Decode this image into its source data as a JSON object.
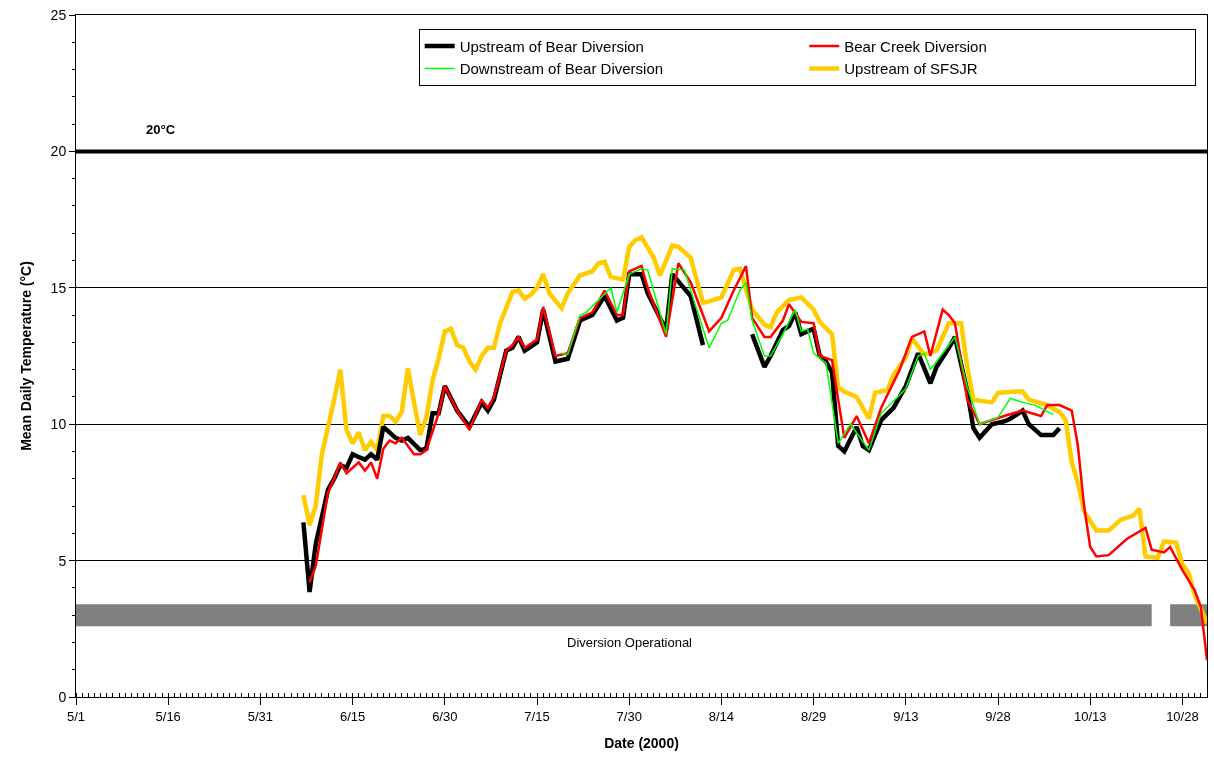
{
  "chart_data": {
    "type": "line",
    "xlabel": "Date (2000)",
    "ylabel": "Mean Daily Temperature (°C)",
    "xlim": [
      "2000-05-01",
      "2000-11-01"
    ],
    "xticks": [
      {
        "value": "2000-05-01",
        "label": "5/1"
      },
      {
        "value": "2000-05-16",
        "label": "5/16"
      },
      {
        "value": "2000-05-31",
        "label": "5/31"
      },
      {
        "value": "2000-06-15",
        "label": "6/15"
      },
      {
        "value": "2000-06-30",
        "label": "6/30"
      },
      {
        "value": "2000-07-15",
        "label": "7/15"
      },
      {
        "value": "2000-07-30",
        "label": "7/30"
      },
      {
        "value": "2000-08-14",
        "label": "8/14"
      },
      {
        "value": "2000-08-29",
        "label": "8/29"
      },
      {
        "value": "2000-09-13",
        "label": "9/13"
      },
      {
        "value": "2000-09-28",
        "label": "9/28"
      },
      {
        "value": "2000-10-13",
        "label": "10/13"
      },
      {
        "value": "2000-10-28",
        "label": "10/28"
      }
    ],
    "ylim": [
      0,
      25
    ],
    "yticks": [
      0,
      5,
      10,
      15,
      20,
      25
    ],
    "grid": "y",
    "legend": "top right",
    "ref_lines": [
      {
        "axis": "y",
        "value": 20,
        "label": "20°C",
        "color": "#000000"
      }
    ],
    "series": [
      {
        "name": "Diversion Operational",
        "color": "#808080",
        "x": [
          "2000-05-01",
          "2000-10-23",
          "2000-10-24",
          "2000-10-26",
          "2000-11-01"
        ],
        "values": [
          3,
          3,
          null,
          3,
          3
        ]
      },
      {
        "name": "Upstream of SFSJR",
        "color": "#ffcc00",
        "x": [
          "2000-06-07",
          "2000-06-08",
          "2000-06-09",
          "2000-06-10",
          "2000-06-11",
          "2000-06-12",
          "2000-06-13",
          "2000-06-14",
          "2000-06-15",
          "2000-06-16",
          "2000-06-17",
          "2000-06-18",
          "2000-06-19",
          "2000-06-20",
          "2000-06-21",
          "2000-06-22",
          "2000-06-23",
          "2000-06-24",
          "2000-06-25",
          "2000-06-26",
          "2000-06-27",
          "2000-06-28",
          "2000-06-29",
          "2000-06-30",
          "2000-07-01",
          "2000-07-02",
          "2000-07-03",
          "2000-07-04",
          "2000-07-05",
          "2000-07-06",
          "2000-07-07",
          "2000-07-08",
          "2000-07-09",
          "2000-07-11",
          "2000-07-12",
          "2000-07-13",
          "2000-07-14",
          "2000-07-15",
          "2000-07-16",
          "2000-07-17",
          "2000-07-19",
          "2000-07-20",
          "2000-07-22",
          "2000-07-24",
          "2000-07-25",
          "2000-07-26",
          "2000-07-27",
          "2000-07-29",
          "2000-07-30",
          "2000-07-31",
          "2000-08-01",
          "2000-08-03",
          "2000-08-04",
          "2000-08-06",
          "2000-08-07",
          "2000-08-09",
          "2000-08-11",
          "2000-08-12",
          "2000-08-14",
          "2000-08-16",
          "2000-08-17",
          "2000-08-19",
          "2000-08-21",
          "2000-08-22",
          "2000-08-23",
          "2000-08-25",
          "2000-08-27",
          "2000-08-29",
          "2000-08-30",
          "2000-09-01",
          "2000-09-02",
          "2000-09-03",
          "2000-09-05",
          "2000-09-07",
          "2000-09-08",
          "2000-09-10",
          "2000-09-11",
          "2000-09-13",
          "2000-09-14",
          "2000-09-16",
          "2000-09-18",
          "2000-09-19",
          "2000-09-20",
          "2000-09-22",
          "2000-09-23",
          "2000-09-24",
          "2000-09-27",
          "2000-09-28",
          "2000-10-01",
          "2000-10-02",
          "2000-10-03",
          "2000-10-06",
          "2000-10-08",
          "2000-10-09",
          "2000-10-10",
          "2000-10-11",
          "2000-10-12",
          "2000-10-14",
          "2000-10-16",
          "2000-10-18",
          "2000-10-20",
          "2000-10-21",
          "2000-10-22",
          "2000-10-24",
          "2000-10-25",
          "2000-10-27",
          "2000-10-28",
          "2000-10-29",
          "2000-10-30",
          "2000-11-01"
        ],
        "values": [
          7.4,
          6.3,
          7.0,
          8.9,
          9.9,
          10.9,
          12.0,
          9.8,
          9.3,
          9.7,
          9.05,
          9.35,
          9.05,
          10.3,
          10.3,
          10.1,
          10.45,
          12.05,
          10.8,
          9.6,
          10.25,
          11.6,
          12.4,
          13.4,
          13.5,
          12.9,
          12.8,
          12.3,
          12.0,
          12.5,
          12.8,
          12.8,
          13.7,
          14.85,
          14.9,
          14.6,
          14.75,
          15.0,
          15.5,
          14.8,
          14.25,
          14.8,
          15.45,
          15.6,
          15.9,
          15.95,
          15.4,
          15.3,
          16.5,
          16.75,
          16.85,
          16.1,
          15.45,
          16.55,
          16.5,
          16.1,
          14.45,
          14.5,
          14.65,
          15.65,
          15.7,
          14.2,
          13.65,
          13.55,
          14.1,
          14.55,
          14.65,
          14.2,
          13.75,
          13.3,
          11.35,
          11.2,
          11.0,
          10.2,
          11.15,
          11.25,
          11.8,
          12.45,
          13.15,
          12.55,
          12.7,
          13.2,
          13.7,
          13.7,
          12.1,
          10.9,
          10.8,
          11.15,
          11.2,
          11.2,
          10.9,
          10.7,
          10.45,
          10.15,
          8.6,
          7.85,
          6.8,
          6.1,
          6.1,
          6.5,
          6.65,
          6.9,
          5.15,
          5.1,
          5.7,
          5.65,
          4.85,
          4.55,
          3.75,
          2.7
        ]
      },
      {
        "name": "Upstream of Bear Diversion",
        "color": "#000000",
        "x": [
          "2000-06-07",
          "2000-06-08",
          "2000-06-09",
          "2000-06-11",
          "2000-06-12",
          "2000-06-13",
          "2000-06-14",
          "2000-06-15",
          "2000-06-16",
          "2000-06-17",
          "2000-06-18",
          "2000-06-19",
          "2000-06-20",
          "2000-06-22",
          "2000-06-23",
          "2000-06-24",
          "2000-06-26",
          "2000-06-27",
          "2000-06-28",
          "2000-06-29",
          "2000-06-30",
          "2000-07-02",
          "2000-07-04",
          "2000-07-06",
          "2000-07-07",
          "2000-07-08",
          "2000-07-10",
          "2000-07-11",
          "2000-07-12",
          "2000-07-13",
          "2000-07-15",
          "2000-07-16",
          "2000-07-18",
          "2000-07-20",
          "2000-07-22",
          "2000-07-24",
          "2000-07-26",
          "2000-07-28",
          "2000-07-29",
          "2000-07-30",
          "2000-08-01",
          "2000-08-02",
          "2000-08-05",
          "2000-08-06",
          "2000-08-09",
          "2000-08-10",
          "2000-08-11",
          "2000-08-15",
          "2000-08-19",
          "2000-08-21",
          "2000-08-22",
          "2000-08-24",
          "2000-08-25",
          "2000-08-26",
          "2000-08-27",
          "2000-08-29",
          "2000-08-30",
          "2000-08-31",
          "2000-09-01",
          "2000-09-02",
          "2000-09-03",
          "2000-09-05",
          "2000-09-06",
          "2000-09-07",
          "2000-09-09",
          "2000-09-11",
          "2000-09-13",
          "2000-09-15",
          "2000-09-17",
          "2000-09-18",
          "2000-09-20",
          "2000-09-21",
          "2000-09-23",
          "2000-09-24",
          "2000-09-25",
          "2000-09-27",
          "2000-09-29",
          "2000-09-30",
          "2000-10-02",
          "2000-10-03",
          "2000-10-05",
          "2000-10-07",
          "2000-10-08"
        ],
        "values": [
          6.4,
          3.85,
          5.6,
          7.6,
          8.0,
          8.5,
          8.4,
          8.9,
          8.8,
          8.7,
          8.9,
          8.7,
          9.9,
          9.5,
          9.4,
          9.5,
          9.05,
          9.1,
          10.4,
          10.4,
          11.4,
          10.5,
          9.9,
          10.8,
          10.5,
          10.9,
          12.7,
          12.8,
          13.2,
          12.7,
          13.0,
          14.2,
          12.3,
          12.4,
          13.8,
          14.0,
          14.7,
          13.8,
          13.9,
          15.5,
          15.5,
          14.8,
          13.45,
          15.5,
          14.7,
          13.8,
          12.9,
          null,
          13.3,
          12.1,
          12.5,
          13.45,
          13.6,
          14.1,
          13.3,
          13.5,
          12.5,
          12.3,
          11.9,
          9.2,
          9.0,
          9.9,
          9.2,
          9.05,
          10.15,
          10.6,
          11.4,
          12.6,
          11.5,
          12.1,
          12.8,
          13.2,
          11.2,
          9.85,
          9.5,
          10.0,
          10.1,
          10.2,
          10.5,
          10.0,
          9.6,
          9.6,
          9.85
        ]
      },
      {
        "name": "Bear Creek Diversion",
        "color": "#ff0000",
        "x": [
          "2000-06-08",
          "2000-06-09",
          "2000-06-11",
          "2000-06-12",
          "2000-06-13",
          "2000-06-14",
          "2000-06-16",
          "2000-06-17",
          "2000-06-18",
          "2000-06-19",
          "2000-06-20",
          "2000-06-21",
          "2000-06-22",
          "2000-06-23",
          "2000-06-25",
          "2000-06-26",
          "2000-06-27",
          "2000-06-29",
          "2000-06-30",
          "2000-07-02",
          "2000-07-04",
          "2000-07-06",
          "2000-07-07",
          "2000-07-08",
          "2000-07-10",
          "2000-07-11",
          "2000-07-12",
          "2000-07-13",
          "2000-07-15",
          "2000-07-16",
          "2000-07-18",
          "2000-07-20",
          "2000-07-22",
          "2000-07-24",
          "2000-07-26",
          "2000-07-28",
          "2000-07-29",
          "2000-07-30",
          "2000-08-01",
          "2000-08-02",
          "2000-08-05",
          "2000-08-07",
          "2000-08-09",
          "2000-08-12",
          "2000-08-14",
          "2000-08-16",
          "2000-08-18",
          "2000-08-19",
          "2000-08-21",
          "2000-08-22",
          "2000-08-24",
          "2000-08-25",
          "2000-08-27",
          "2000-08-29",
          "2000-08-30",
          "2000-09-01",
          "2000-09-02",
          "2000-09-03",
          "2000-09-05",
          "2000-09-07",
          "2000-09-09",
          "2000-09-12",
          "2000-09-14",
          "2000-09-16",
          "2000-09-17",
          "2000-09-19",
          "2000-09-20",
          "2000-09-21",
          "2000-09-23",
          "2000-09-25",
          "2000-09-29",
          "2000-10-02",
          "2000-10-05",
          "2000-10-06",
          "2000-10-08",
          "2000-10-10",
          "2000-10-11",
          "2000-10-12",
          "2000-10-13",
          "2000-10-14",
          "2000-10-16",
          "2000-10-19",
          "2000-10-22",
          "2000-10-23",
          "2000-10-25",
          "2000-10-26",
          "2000-10-28",
          "2000-10-30",
          "2000-10-31",
          "2000-11-01"
        ],
        "values": [
          4.2,
          4.8,
          7.5,
          8.0,
          8.6,
          8.2,
          8.6,
          8.3,
          8.6,
          8.0,
          9.1,
          9.4,
          9.3,
          9.5,
          8.9,
          8.9,
          9.05,
          10.4,
          11.4,
          10.5,
          9.8,
          10.9,
          10.6,
          11.0,
          12.7,
          12.9,
          13.2,
          12.8,
          13.1,
          14.3,
          12.5,
          12.6,
          13.9,
          14.1,
          14.9,
          14.0,
          14.0,
          15.6,
          15.8,
          15.0,
          13.2,
          15.9,
          15.2,
          13.4,
          13.9,
          14.9,
          15.8,
          13.9,
          13.2,
          13.2,
          13.8,
          14.4,
          13.75,
          13.7,
          12.5,
          12.35,
          10.9,
          9.5,
          10.3,
          9.3,
          10.6,
          12.0,
          13.2,
          13.4,
          12.5,
          14.2,
          14.0,
          13.7,
          10.9,
          10.0,
          10.3,
          10.5,
          10.3,
          10.7,
          10.7,
          10.5,
          9.2,
          7.0,
          5.5,
          5.15,
          5.2,
          5.8,
          6.2,
          5.4,
          5.3,
          5.5,
          4.65,
          3.9,
          3.3,
          1.35
        ]
      },
      {
        "name": "Downstream of Bear Diversion",
        "color": "#00ff00",
        "x": [
          "2000-07-19",
          "2000-07-20",
          "2000-07-22",
          "2000-07-23",
          "2000-07-27",
          "2000-07-28",
          "2000-07-30",
          "2000-08-01",
          "2000-08-02",
          "2000-08-05",
          "2000-08-06",
          "2000-08-08",
          "2000-08-09",
          "2000-08-12",
          "2000-08-14",
          "2000-08-15",
          "2000-08-17",
          "2000-08-18",
          "2000-08-19",
          "2000-08-21",
          "2000-08-22",
          "2000-08-24",
          "2000-08-26",
          "2000-08-27",
          "2000-08-28",
          "2000-08-29",
          "2000-08-31",
          "2000-09-02",
          "2000-09-04",
          "2000-09-07",
          "2000-09-09",
          "2000-09-13",
          "2000-09-15",
          "2000-09-16",
          "2000-09-17",
          "2000-09-19",
          "2000-09-21",
          "2000-09-23",
          "2000-09-25",
          "2000-09-28",
          "2000-09-30",
          "2000-10-02",
          "2000-10-04",
          "2000-10-07"
        ],
        "values": [
          12.6,
          12.55,
          14.0,
          14.1,
          15.0,
          14.1,
          15.5,
          15.7,
          15.65,
          13.3,
          15.7,
          15.65,
          14.9,
          12.8,
          13.7,
          13.8,
          14.9,
          15.2,
          13.8,
          12.5,
          12.5,
          13.3,
          14.2,
          13.4,
          13.5,
          12.6,
          12.25,
          9.3,
          10.0,
          9.05,
          10.4,
          11.3,
          12.5,
          12.6,
          12.0,
          12.6,
          13.2,
          11.35,
          10.0,
          10.25,
          10.95,
          10.8,
          10.7,
          10.35
        ]
      }
    ]
  }
}
